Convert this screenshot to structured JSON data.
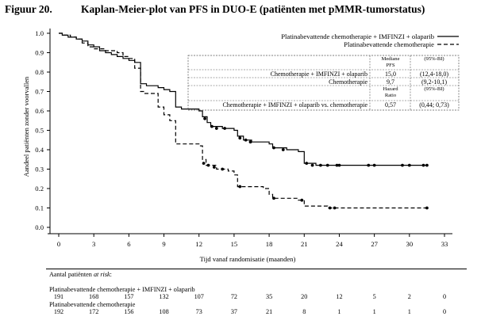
{
  "figure": {
    "number": "Figuur 20.",
    "title": "Kaplan-Meier-plot van PFS in DUO-E (patiënten met pMMR-tumorstatus)"
  },
  "chart_data": {
    "type": "line",
    "xlabel": "Tijd vanaf randomisatie (maanden)",
    "ylabel": "Aandeel patiënten zonder voorvallen",
    "xlim": [
      0,
      33
    ],
    "ylim": [
      0,
      1.0
    ],
    "xticks": [
      0,
      3,
      6,
      9,
      12,
      15,
      18,
      21,
      24,
      27,
      30,
      33
    ],
    "yticks": [
      "0.0",
      "0.1",
      "0.2",
      "0.3",
      "0.4",
      "0.5",
      "0.6",
      "0.7",
      "0.8",
      "0.9",
      "1.0"
    ],
    "legend_position": "top-right",
    "series": [
      {
        "name": "Platinabevattende chemotherapie + IMFINZI + olaparib",
        "line_style": "solid",
        "color": "#000000",
        "points": [
          [
            0,
            1.0
          ],
          [
            0.3,
            0.99
          ],
          [
            0.8,
            0.98
          ],
          [
            1.5,
            0.97
          ],
          [
            2.0,
            0.96
          ],
          [
            2.5,
            0.94
          ],
          [
            3.0,
            0.93
          ],
          [
            3.5,
            0.91
          ],
          [
            4.0,
            0.9
          ],
          [
            4.5,
            0.89
          ],
          [
            5.0,
            0.88
          ],
          [
            5.5,
            0.87
          ],
          [
            6.0,
            0.86
          ],
          [
            6.5,
            0.85
          ],
          [
            7.0,
            0.74
          ],
          [
            7.5,
            0.73
          ],
          [
            8.5,
            0.72
          ],
          [
            9.0,
            0.71
          ],
          [
            9.5,
            0.7
          ],
          [
            10.0,
            0.62
          ],
          [
            10.5,
            0.61
          ],
          [
            12.0,
            0.6
          ],
          [
            12.3,
            0.57
          ],
          [
            12.7,
            0.54
          ],
          [
            13.0,
            0.52
          ],
          [
            14.0,
            0.51
          ],
          [
            15.0,
            0.5
          ],
          [
            15.3,
            0.47
          ],
          [
            15.8,
            0.45
          ],
          [
            16.5,
            0.44
          ],
          [
            18.0,
            0.43
          ],
          [
            18.3,
            0.41
          ],
          [
            19.5,
            0.4
          ],
          [
            20.5,
            0.39
          ],
          [
            21.0,
            0.33
          ],
          [
            22.0,
            0.32
          ],
          [
            31.5,
            0.32
          ]
        ],
        "censor_marks": [
          [
            12.5,
            0.56
          ],
          [
            13.1,
            0.52
          ],
          [
            13.5,
            0.51
          ],
          [
            14.2,
            0.51
          ],
          [
            15.5,
            0.46
          ],
          [
            16.0,
            0.45
          ],
          [
            16.4,
            0.44
          ],
          [
            18.4,
            0.41
          ],
          [
            19.2,
            0.4
          ],
          [
            21.2,
            0.33
          ],
          [
            21.7,
            0.32
          ],
          [
            22.4,
            0.32
          ],
          [
            23.0,
            0.32
          ],
          [
            23.8,
            0.32
          ],
          [
            24.0,
            0.32
          ],
          [
            26.5,
            0.32
          ],
          [
            27.0,
            0.32
          ],
          [
            29.4,
            0.32
          ],
          [
            30.0,
            0.32
          ],
          [
            31.2,
            0.32
          ],
          [
            31.5,
            0.32
          ]
        ]
      },
      {
        "name": "Platinabevattende chemotherapie",
        "line_style": "dashed",
        "color": "#000000",
        "points": [
          [
            0,
            1.0
          ],
          [
            0.3,
            0.99
          ],
          [
            1.0,
            0.98
          ],
          [
            1.5,
            0.97
          ],
          [
            2.0,
            0.95
          ],
          [
            2.5,
            0.93
          ],
          [
            3.0,
            0.92
          ],
          [
            4.0,
            0.91
          ],
          [
            5.0,
            0.9
          ],
          [
            5.5,
            0.88
          ],
          [
            6.0,
            0.87
          ],
          [
            6.5,
            0.82
          ],
          [
            7.0,
            0.7
          ],
          [
            7.3,
            0.69
          ],
          [
            8.5,
            0.62
          ],
          [
            9.0,
            0.58
          ],
          [
            9.5,
            0.55
          ],
          [
            10.0,
            0.43
          ],
          [
            12.0,
            0.42
          ],
          [
            12.3,
            0.35
          ],
          [
            12.6,
            0.32
          ],
          [
            13.5,
            0.3
          ],
          [
            14.5,
            0.29
          ],
          [
            15.0,
            0.27
          ],
          [
            15.3,
            0.21
          ],
          [
            17.5,
            0.2
          ],
          [
            18.0,
            0.17
          ],
          [
            18.3,
            0.15
          ],
          [
            20.5,
            0.14
          ],
          [
            21.0,
            0.11
          ],
          [
            23.0,
            0.1
          ],
          [
            31.5,
            0.1
          ]
        ],
        "censor_marks": [
          [
            12.4,
            0.33
          ],
          [
            12.8,
            0.32
          ],
          [
            13.3,
            0.31
          ],
          [
            14.0,
            0.3
          ],
          [
            15.5,
            0.21
          ],
          [
            18.4,
            0.15
          ],
          [
            20.8,
            0.14
          ],
          [
            23.2,
            0.1
          ],
          [
            23.6,
            0.1
          ],
          [
            31.5,
            0.1
          ]
        ]
      }
    ],
    "stats_table": {
      "header_1": [
        "",
        "Mediane PFS",
        "(95%-BI)"
      ],
      "rows_1": [
        [
          "Chemotherapie + IMFINZI + olaparib",
          "15,0",
          "(12,4-18,0)"
        ],
        [
          "Chemotherapie",
          "9,7",
          "(9,2-10,1)"
        ]
      ],
      "header_2": [
        "",
        "Hazard Ratio",
        "(95%-BI)"
      ],
      "rows_2": [
        [
          "Chemotherapie + IMFINZI + olaparib vs. chemotherapie",
          "0,57",
          "(0,44; 0,73)"
        ]
      ]
    },
    "at_risk": {
      "title_prefix": "Aantal patiënten ",
      "title_italic": "at risk",
      "title_suffix": ":",
      "groups": [
        {
          "label": "Platinabevattende chemotherapie + IMFINZI + olaparib",
          "values": [
            191,
            168,
            157,
            132,
            107,
            72,
            35,
            20,
            12,
            5,
            2,
            0
          ]
        },
        {
          "label": "Platinabevattende chemotherapie",
          "values": [
            192,
            172,
            156,
            108,
            73,
            37,
            21,
            8,
            1,
            1,
            1,
            0
          ]
        }
      ]
    }
  }
}
